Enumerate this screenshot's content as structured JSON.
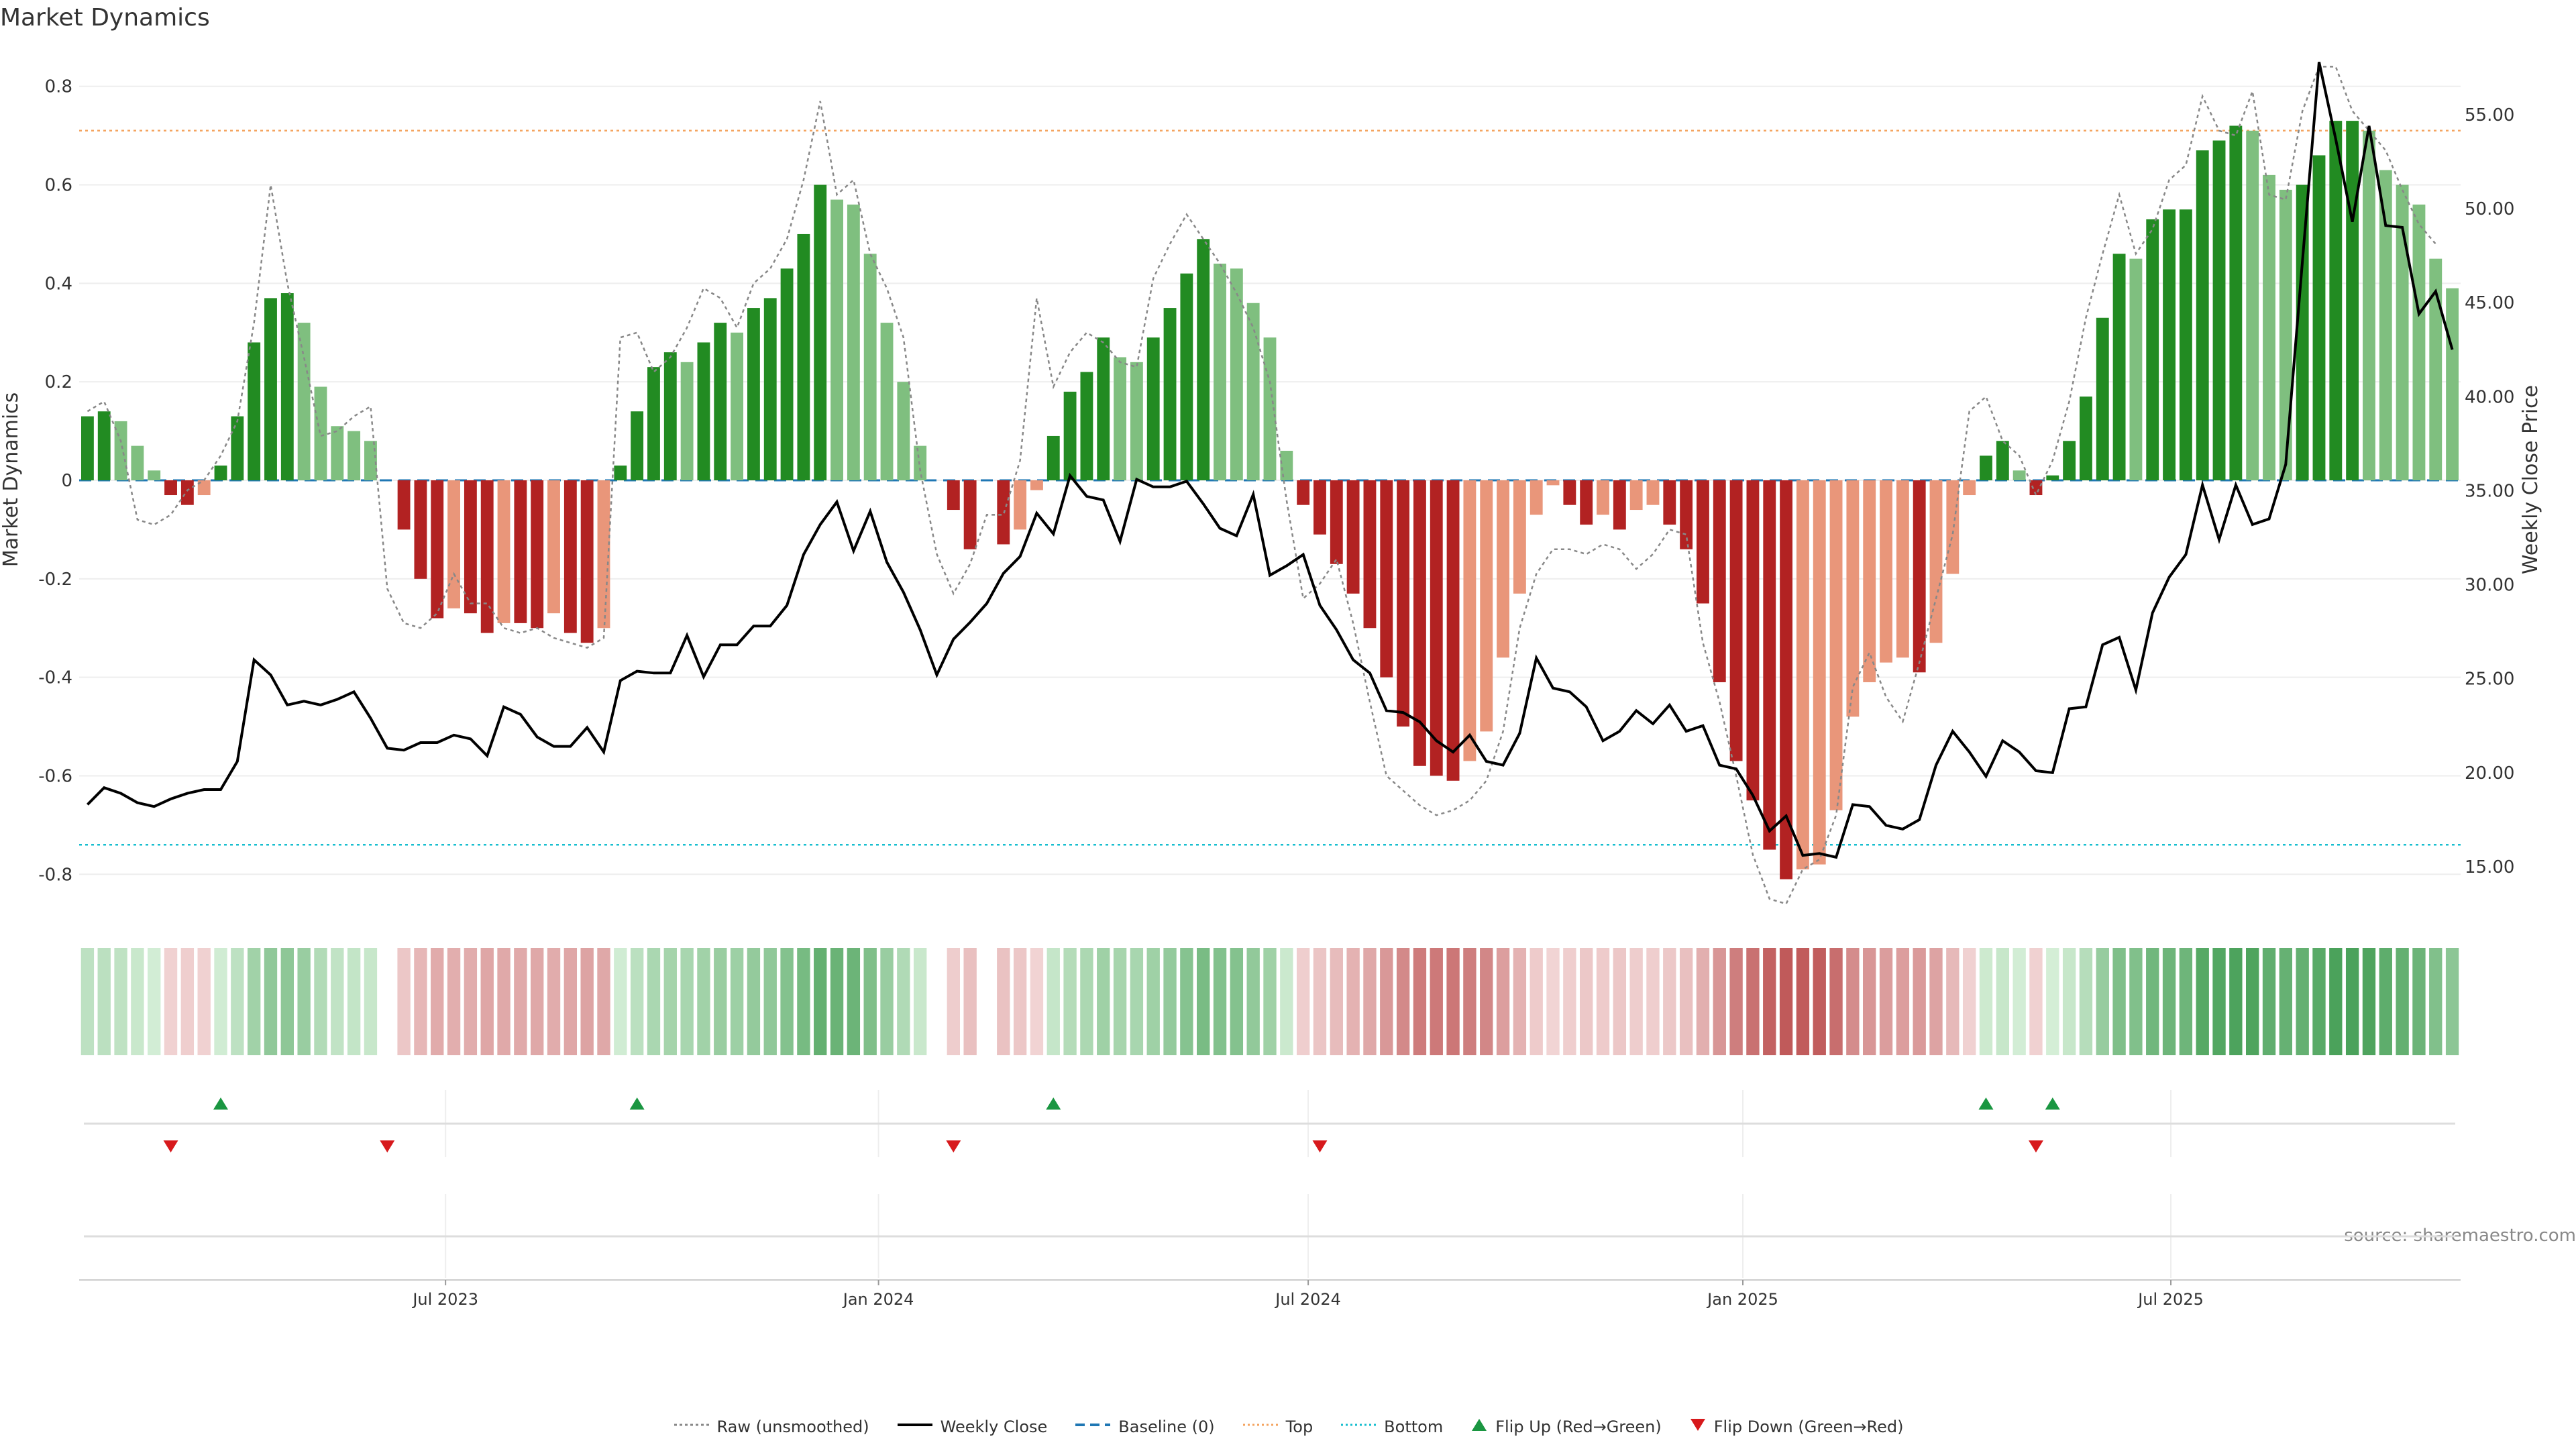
{
  "chart_data": {
    "type": "bar",
    "title": "Market Dynamics",
    "ylabel_left": "Market Dynamics",
    "ylabel_right": "Weekly Close Price",
    "source": "source: sharemaestro.com",
    "ylim_left": [
      -0.88,
      0.88
    ],
    "ylim_right": [
      12.5,
      58.6
    ],
    "yticks_left": [
      "0.8",
      "0.6",
      "0.4",
      "0.2",
      "0",
      "-0.2",
      "-0.4",
      "-0.6",
      "-0.8"
    ],
    "yticks_left_values": [
      0.8,
      0.6,
      0.4,
      0.2,
      0,
      -0.2,
      -0.4,
      -0.6,
      -0.8
    ],
    "yticks_right": [
      "55.00",
      "50.00",
      "45.00",
      "40.00",
      "35.00",
      "30.00",
      "25.00",
      "20.00",
      "15.00"
    ],
    "yticks_right_values": [
      55,
      50,
      45,
      40,
      35,
      30,
      25,
      20,
      15
    ],
    "xticks": [
      {
        "label": "Jul 2023",
        "week": 21.5
      },
      {
        "label": "Jan 2024",
        "week": 47.5
      },
      {
        "label": "Jul 2024",
        "week": 73.3
      },
      {
        "label": "Jan 2025",
        "week": 99.4
      },
      {
        "label": "Jul 2025",
        "week": 125.1
      }
    ],
    "top_line": 0.71,
    "bottom_line": -0.74,
    "baseline": 0,
    "colors": {
      "pos_strong": "#228b22",
      "pos_weak": "#7fbf7f",
      "neg_strong": "#b22222",
      "neg_weak": "#e9967a",
      "close": "#000000",
      "raw": "#888888",
      "baseline": "#1f77b4",
      "top": "#f4a460",
      "bottom": "#17becf",
      "flip_up": "#1a9641",
      "flip_down": "#d7191c"
    },
    "values": [
      0.13,
      0.14,
      0.12,
      0.07,
      0.02,
      -0.03,
      -0.05,
      -0.03,
      0.03,
      0.13,
      0.28,
      0.37,
      0.38,
      0.32,
      0.19,
      0.11,
      0.1,
      0.08,
      null,
      -0.1,
      -0.2,
      -0.28,
      -0.26,
      -0.27,
      -0.31,
      -0.29,
      -0.29,
      -0.3,
      -0.27,
      -0.31,
      -0.33,
      -0.3,
      0.03,
      0.14,
      0.23,
      0.26,
      0.24,
      0.28,
      0.32,
      0.3,
      0.35,
      0.37,
      0.43,
      0.5,
      0.6,
      0.57,
      0.56,
      0.46,
      0.32,
      0.2,
      0.07,
      null,
      -0.06,
      -0.14,
      null,
      -0.13,
      -0.1,
      -0.02,
      0.09,
      0.18,
      0.22,
      0.29,
      0.25,
      0.24,
      0.29,
      0.35,
      0.42,
      0.49,
      0.44,
      0.43,
      0.36,
      0.29,
      0.06,
      -0.05,
      -0.11,
      -0.17,
      -0.23,
      -0.3,
      -0.4,
      -0.5,
      -0.58,
      -0.6,
      -0.61,
      -0.57,
      -0.51,
      -0.36,
      -0.23,
      -0.07,
      -0.01,
      -0.05,
      -0.09,
      -0.07,
      -0.1,
      -0.06,
      -0.05,
      -0.09,
      -0.14,
      -0.25,
      -0.41,
      -0.57,
      -0.65,
      -0.75,
      -0.81,
      -0.79,
      -0.78,
      -0.67,
      -0.48,
      -0.41,
      -0.37,
      -0.36,
      -0.39,
      -0.33,
      -0.19,
      -0.03,
      0.05,
      0.08,
      0.02,
      -0.03,
      0.01,
      0.08,
      0.17,
      0.33,
      0.46,
      0.45,
      0.53,
      0.55,
      0.55,
      0.67,
      0.69,
      0.72,
      0.71,
      0.62,
      0.59,
      0.6,
      0.66,
      0.73,
      0.73,
      0.71,
      0.63,
      0.6,
      0.56,
      0.45,
      0.39
    ],
    "close": [
      18.3,
      19.2,
      18.9,
      18.4,
      18.2,
      18.6,
      18.9,
      19.1,
      19.1,
      20.6,
      26.0,
      25.2,
      23.6,
      23.8,
      23.6,
      23.9,
      24.3,
      22.9,
      21.3,
      21.2,
      21.6,
      21.6,
      22.0,
      21.8,
      20.9,
      23.5,
      23.1,
      21.9,
      21.4,
      21.4,
      22.4,
      21.1,
      24.9,
      25.4,
      25.3,
      25.3,
      27.3,
      25.1,
      26.8,
      26.8,
      27.8,
      27.8,
      28.9,
      31.6,
      33.2,
      34.4,
      31.8,
      33.9,
      31.2,
      29.6,
      27.6,
      25.2,
      27.1,
      28.0,
      29.0,
      30.6,
      31.5,
      33.8,
      32.7,
      35.8,
      34.7,
      34.5,
      32.3,
      35.6,
      35.2,
      35.2,
      35.5,
      34.3,
      33.0,
      32.6,
      34.8,
      30.5,
      31.0,
      31.6,
      28.9,
      27.6,
      26.0,
      25.3,
      23.3,
      23.2,
      22.7,
      21.7,
      21.1,
      22.0,
      20.6,
      20.4,
      22.1,
      26.1,
      24.5,
      24.3,
      23.5,
      21.7,
      22.2,
      23.3,
      22.6,
      23.6,
      22.2,
      22.5,
      20.4,
      20.2,
      18.8,
      16.9,
      17.7,
      15.6,
      15.7,
      15.5,
      18.3,
      18.2,
      17.2,
      17.0,
      17.5,
      20.4,
      22.2,
      21.1,
      19.8,
      21.7,
      21.1,
      20.1,
      20.0,
      23.4,
      23.5,
      26.8,
      27.2,
      24.4,
      28.5,
      30.4,
      31.6,
      35.3,
      32.4,
      35.3,
      33.2,
      33.5,
      36.4,
      47.2,
      57.8,
      53.7,
      49.3,
      54.4,
      49.1,
      49.0,
      44.4,
      45.6,
      42.5
    ],
    "raw": [
      0.14,
      0.16,
      0.08,
      -0.08,
      -0.09,
      -0.07,
      -0.02,
      0.0,
      0.05,
      0.12,
      0.32,
      0.6,
      0.4,
      0.25,
      0.09,
      0.1,
      0.13,
      0.15,
      -0.22,
      -0.29,
      -0.3,
      -0.27,
      -0.19,
      -0.25,
      -0.25,
      -0.3,
      -0.31,
      -0.3,
      -0.32,
      -0.33,
      -0.34,
      -0.32,
      0.29,
      0.3,
      0.22,
      0.25,
      0.31,
      0.39,
      0.37,
      0.31,
      0.4,
      0.43,
      0.49,
      0.61,
      0.77,
      0.58,
      0.61,
      0.46,
      0.39,
      0.29,
      0.02,
      -0.15,
      -0.23,
      -0.17,
      -0.07,
      -0.07,
      0.04,
      0.37,
      0.19,
      0.26,
      0.3,
      0.28,
      0.24,
      0.23,
      0.41,
      0.48,
      0.54,
      0.49,
      0.44,
      0.38,
      0.31,
      0.2,
      -0.04,
      -0.24,
      -0.21,
      -0.16,
      -0.29,
      -0.45,
      -0.6,
      -0.63,
      -0.66,
      -0.68,
      -0.67,
      -0.65,
      -0.61,
      -0.51,
      -0.3,
      -0.19,
      -0.14,
      -0.14,
      -0.15,
      -0.13,
      -0.14,
      -0.18,
      -0.15,
      -0.1,
      -0.11,
      -0.33,
      -0.45,
      -0.6,
      -0.76,
      -0.85,
      -0.86,
      -0.79,
      -0.77,
      -0.68,
      -0.42,
      -0.35,
      -0.44,
      -0.49,
      -0.37,
      -0.24,
      -0.11,
      0.14,
      0.17,
      0.08,
      0.05,
      -0.03,
      0.04,
      0.16,
      0.33,
      0.46,
      0.58,
      0.46,
      0.51,
      0.61,
      0.64,
      0.78,
      0.71,
      0.7,
      0.79,
      0.58,
      0.57,
      0.75,
      0.84,
      0.84,
      0.75,
      0.71,
      0.67,
      0.59,
      0.52,
      0.48
    ],
    "flip_up_weeks": [
      8,
      33,
      58,
      114,
      118
    ],
    "flip_down_weeks": [
      5,
      18,
      52,
      74,
      117
    ]
  },
  "legend": [
    {
      "label": "Raw (unsmoothed)",
      "icon": "dotted-line-icon"
    },
    {
      "label": "Weekly Close",
      "icon": "solid-line-icon"
    },
    {
      "label": "Baseline (0)",
      "icon": "dashed-line-icon"
    },
    {
      "label": "Top",
      "icon": "dotted-line-icon"
    },
    {
      "label": "Bottom",
      "icon": "dotted-line-icon"
    },
    {
      "label": "Flip Up (Red→Green)",
      "icon": "triangle-up-icon"
    },
    {
      "label": "Flip Down (Green→Red)",
      "icon": "triangle-down-icon"
    }
  ]
}
